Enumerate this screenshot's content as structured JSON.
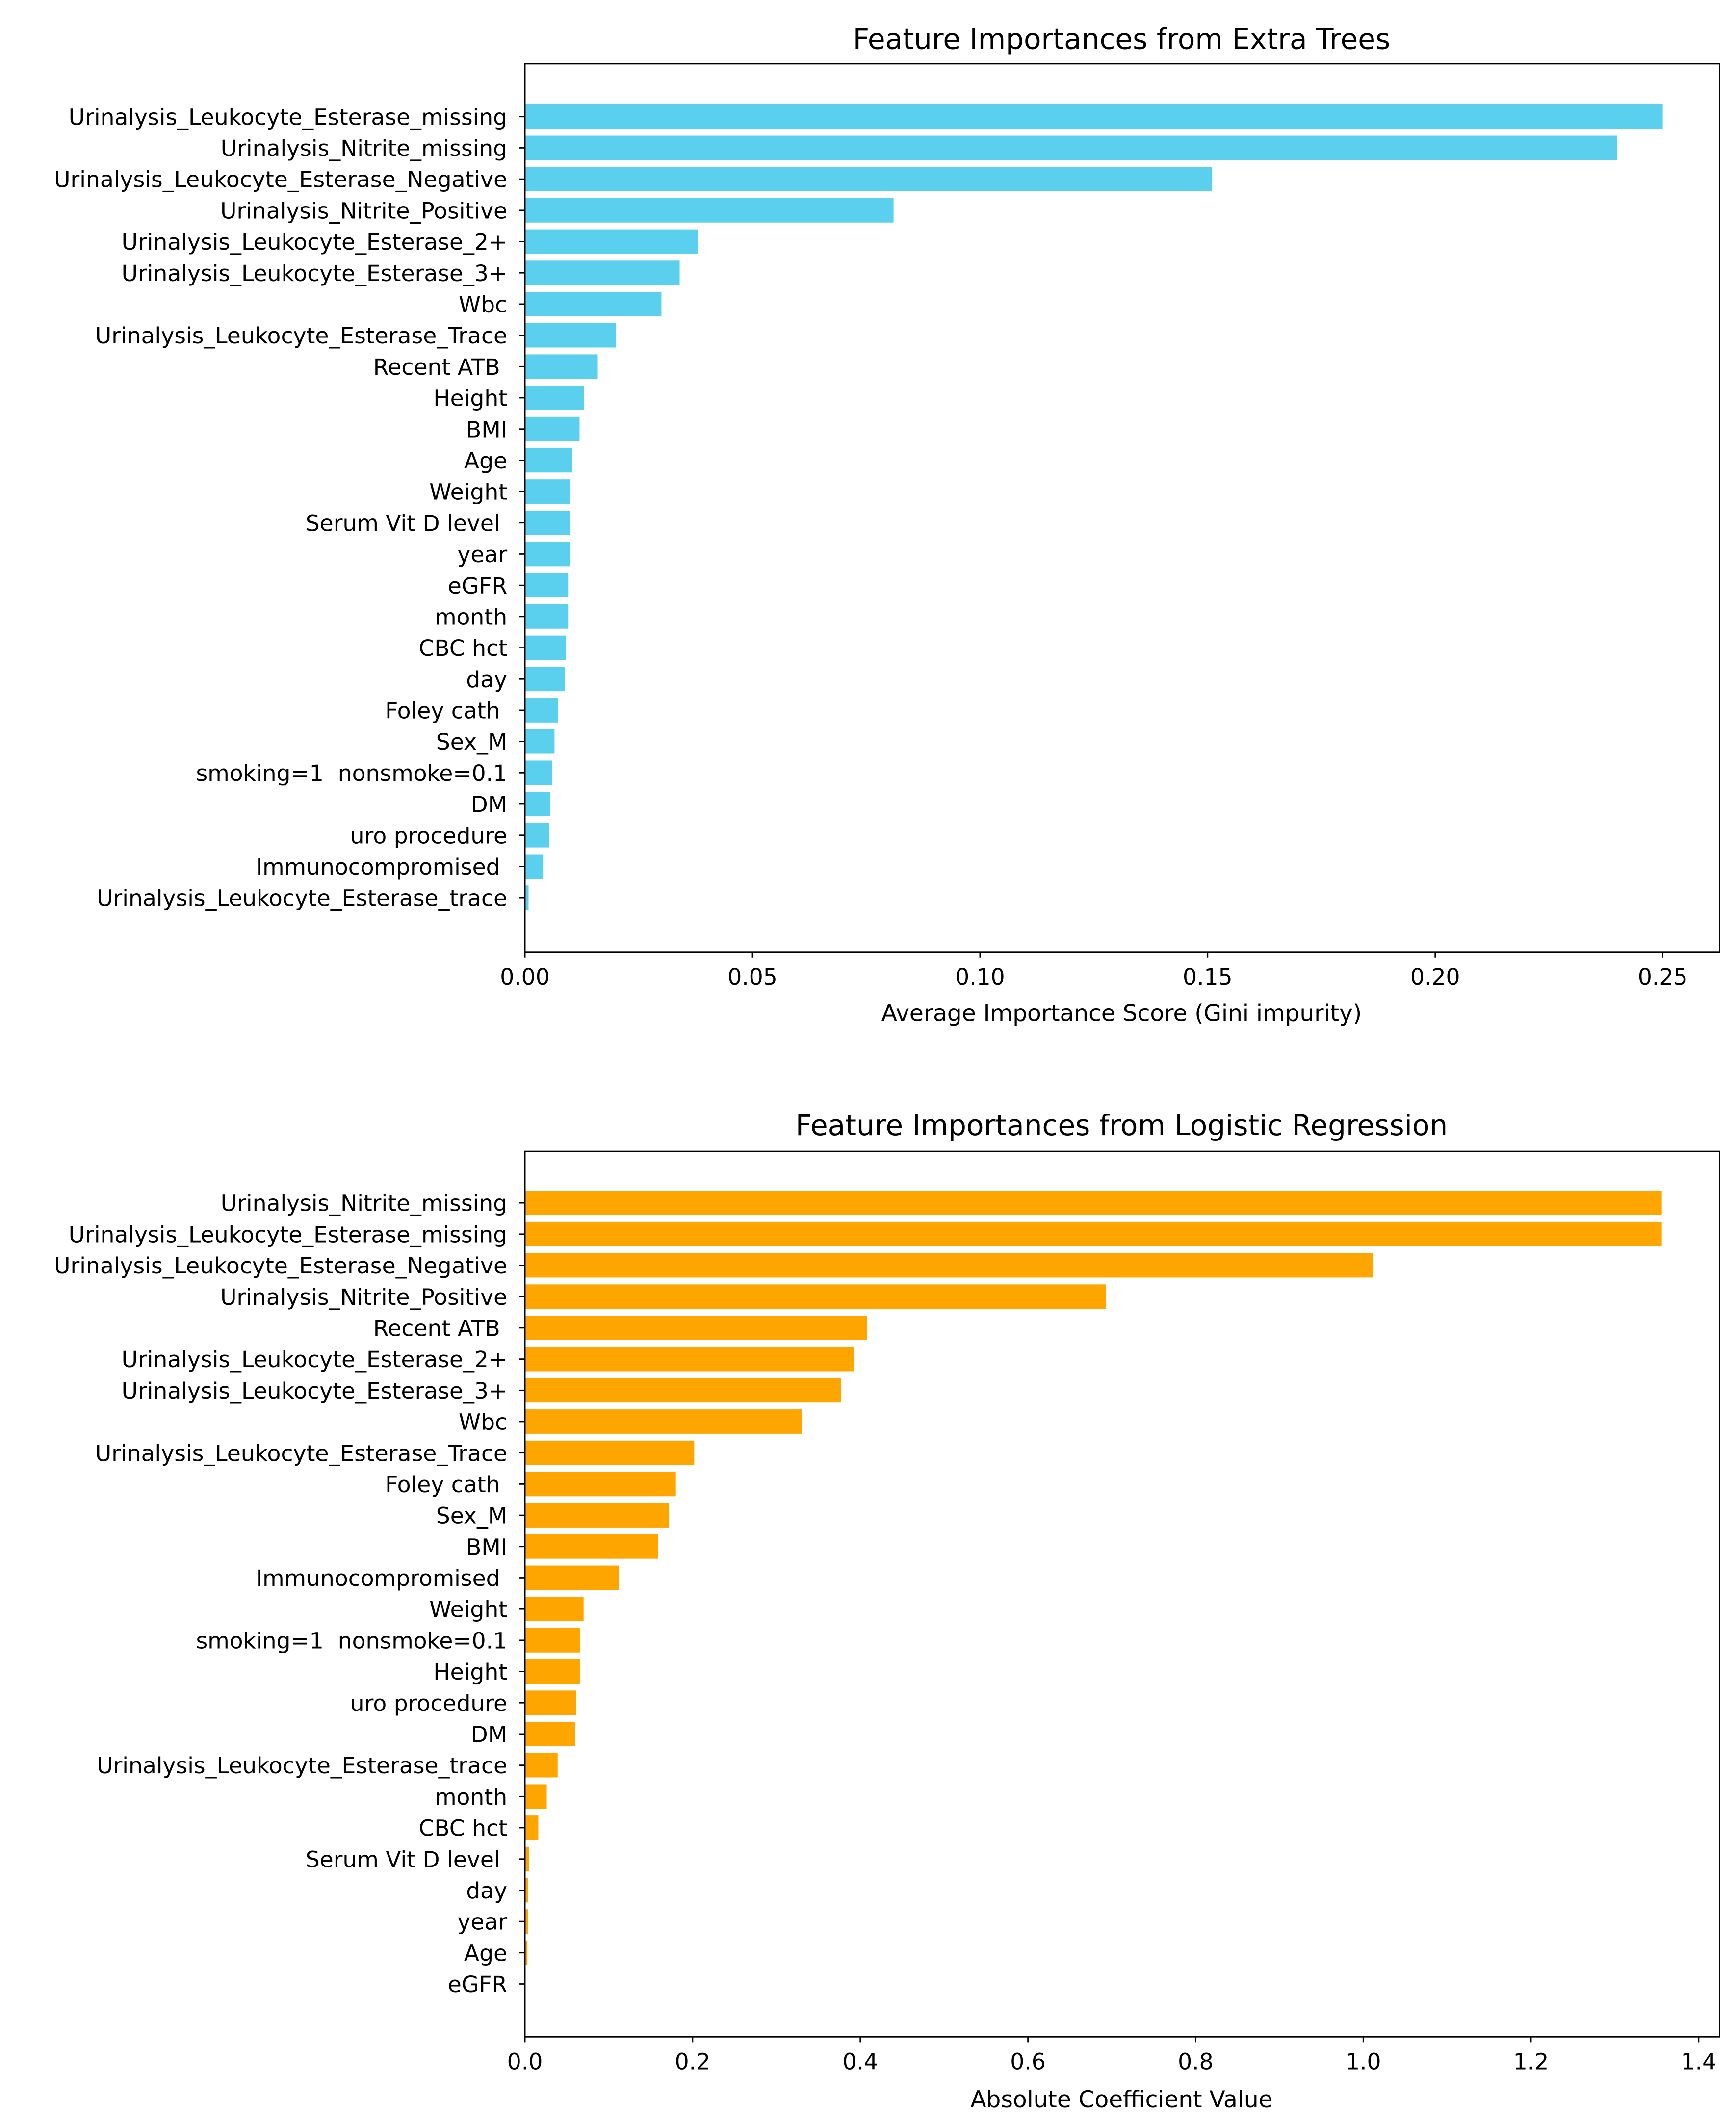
{
  "chart_data": [
    {
      "type": "bar",
      "orientation": "horizontal",
      "title": "Feature Importances from Extra Trees",
      "xlabel": "Average Importance Score (Gini impurity)",
      "ylabel": "",
      "xlim": [
        0,
        0.2625
      ],
      "xticks": [
        0,
        0.05,
        0.1,
        0.15,
        0.2,
        0.25
      ],
      "xtick_labels": [
        "0.00",
        "0.05",
        "0.10",
        "0.15",
        "0.20",
        "0.25"
      ],
      "color": "#5bcfee",
      "grid": false,
      "categories": [
        "Urinalysis_Leukocyte_Esterase_missing",
        "Urinalysis_Nitrite_missing",
        "Urinalysis_Leukocyte_Esterase_Negative",
        "Urinalysis_Nitrite_Positive",
        "Urinalysis_Leukocyte_Esterase_2+",
        "Urinalysis_Leukocyte_Esterase_3+",
        "Wbc",
        "Urinalysis_Leukocyte_Esterase_Trace",
        "Recent ATB ",
        "Height",
        "BMI",
        "Age",
        "Weight",
        "Serum Vit D level ",
        "year",
        "eGFR",
        "month",
        "CBC hct",
        "day",
        "Foley cath ",
        "Sex_M",
        "smoking=1  nonsmoke=0.1",
        "DM",
        "uro procedure",
        "Immunocompromised ",
        "Urinalysis_Leukocyte_Esterase_trace"
      ],
      "values": [
        0.25,
        0.24,
        0.151,
        0.081,
        0.038,
        0.034,
        0.03,
        0.02,
        0.016,
        0.013,
        0.012,
        0.0104,
        0.01,
        0.01,
        0.01,
        0.0095,
        0.0095,
        0.009,
        0.0088,
        0.0073,
        0.0065,
        0.006,
        0.0056,
        0.0053,
        0.004,
        0.0008
      ]
    },
    {
      "type": "bar",
      "orientation": "horizontal",
      "title": "Feature Importances from Logistic Regression",
      "xlabel": "Absolute Coefficient Value",
      "ylabel": "",
      "xlim": [
        0,
        1.425
      ],
      "xticks": [
        0,
        0.2,
        0.4,
        0.6,
        0.8,
        1.0,
        1.2,
        1.4
      ],
      "xtick_labels": [
        "0.0",
        "0.2",
        "0.4",
        "0.6",
        "0.8",
        "1.0",
        "1.2",
        "1.4"
      ],
      "color": "#ffa500",
      "grid": false,
      "categories": [
        "Urinalysis_Nitrite_missing",
        "Urinalysis_Leukocyte_Esterase_missing",
        "Urinalysis_Leukocyte_Esterase_Negative",
        "Urinalysis_Nitrite_Positive",
        "Recent ATB ",
        "Urinalysis_Leukocyte_Esterase_2+",
        "Urinalysis_Leukocyte_Esterase_3+",
        "Wbc",
        "Urinalysis_Leukocyte_Esterase_Trace",
        "Foley cath ",
        "Sex_M",
        "BMI",
        "Immunocompromised ",
        "Weight",
        "smoking=1  nonsmoke=0.1",
        "Height",
        "uro procedure",
        "DM",
        "Urinalysis_Leukocyte_Esterase_trace",
        "month",
        "CBC hct",
        "Serum Vit D level ",
        "day",
        "year",
        "Age",
        "eGFR"
      ],
      "values": [
        1.356,
        1.356,
        1.011,
        0.693,
        0.408,
        0.392,
        0.377,
        0.33,
        0.202,
        0.18,
        0.172,
        0.159,
        0.112,
        0.07,
        0.066,
        0.066,
        0.061,
        0.06,
        0.039,
        0.026,
        0.016,
        0.005,
        0.004,
        0.004,
        0.003,
        0.0005
      ]
    }
  ]
}
